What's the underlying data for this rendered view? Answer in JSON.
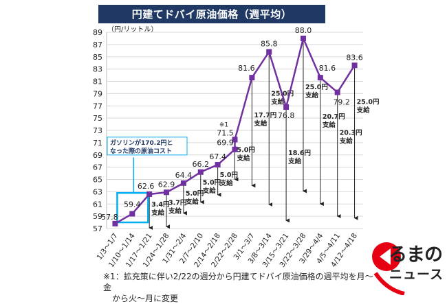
{
  "title": "円建てドバイ原油価格（週平均）",
  "footnote": {
    "line1": "※1：拡充策に伴い2/22の週分から円建てドバイ原油価格の週平均を月～金",
    "line2": "から火～月に変更"
  },
  "logo": {
    "line1": "るまの",
    "line2": "ニュース",
    "icon": "car-icon"
  },
  "colors": {
    "line": "#7030a0",
    "title_bg": "#1f3864",
    "callout": "#00b0f0",
    "grid": "#d9d9d9"
  },
  "chart_data": {
    "type": "line",
    "ylabel": "（円/リットル）",
    "ylim": [
      57,
      89
    ],
    "yticks": [
      57,
      59,
      61,
      63,
      65,
      67,
      69,
      71,
      73,
      75,
      77,
      79,
      81,
      83,
      85,
      87,
      89
    ],
    "categories": [
      "1/3～1/7",
      "1/10～1/14",
      "1/17～1/21",
      "1/24～1/28",
      "1/31～2/4",
      "2/7～2/10",
      "2/14～2/18",
      "2/22～2/28",
      "3/1～3/7",
      "3/8～3/14",
      "3/15～3/21",
      "3/22～3/28",
      "3/29～4/4",
      "4/5～4/11",
      "4/12～4/18"
    ],
    "series": [
      {
        "values": [
          57.8,
          59.4,
          62.6,
          62.9,
          64.4,
          66.2,
          67.4,
          69.9,
          81.6,
          85.8,
          76.8,
          88.0,
          81.6,
          79.2,
          83.6
        ],
        "labels": [
          "57.8",
          "59.4",
          "62.6",
          "62.9",
          "64.4",
          "66.2",
          "67.4",
          "69.9",
          "81.6",
          "85.8",
          "76.8",
          "88.0",
          "81.6",
          "79.2",
          "83.6"
        ]
      }
    ],
    "extra_point": {
      "category_index": 7,
      "value": 71.5,
      "label": "71.5",
      "note": "※1"
    },
    "subsidies": [
      {
        "category_index": 2,
        "amount": "3.4円",
        "word": "支給",
        "arrow_to": 57.0
      },
      {
        "category_index": 3,
        "amount": "3.7円",
        "word": "支給",
        "arrow_to": 57.2
      },
      {
        "category_index": 4,
        "amount": "5.0円",
        "word": "支給",
        "arrow_to": 59.4
      },
      {
        "category_index": 5,
        "amount": "5.0円",
        "word": "支給",
        "arrow_to": 61.2
      },
      {
        "category_index": 6,
        "amount": "5.0円",
        "word": "支給",
        "arrow_to": 62.4
      },
      {
        "category_index": 7,
        "amount": "5.0円",
        "word": "支給",
        "arrow_to": 64.9
      },
      {
        "category_index": 8,
        "amount": "17.7円",
        "word": "支給",
        "arrow_to": 63.9
      },
      {
        "category_index": 9,
        "amount": "25.0円",
        "word": "支給",
        "arrow_to": 60.8
      },
      {
        "category_index": 10,
        "amount": "18.6円",
        "word": "支給",
        "arrow_to": 58.2
      },
      {
        "category_index": 11,
        "amount": "25.0円",
        "word": "支給",
        "arrow_to": 63.0
      },
      {
        "category_index": 12,
        "amount": "20.7円",
        "word": "支給",
        "arrow_to": 60.9
      },
      {
        "category_index": 13,
        "amount": "20.3円",
        "word": "支給",
        "arrow_to": 58.9
      },
      {
        "category_index": 14,
        "amount": "25.0円",
        "word": "支給",
        "arrow_to": 58.6
      }
    ],
    "callout": {
      "text_line1": "ガソリンが170.2円と",
      "text_line2": "なった際の原油コスト"
    }
  }
}
